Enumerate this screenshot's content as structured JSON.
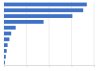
{
  "chart_data": {
    "type": "bar",
    "orientation": "horizontal",
    "categories": [
      null,
      null,
      null,
      null,
      null,
      null,
      null,
      null,
      null,
      null,
      null
    ],
    "values": [
      92,
      88,
      76,
      44,
      13,
      8,
      6,
      4,
      3,
      2,
      1
    ],
    "color": "#3f72c6",
    "xlim": [
      0,
      100
    ],
    "xticks": [
      0,
      25,
      50,
      75,
      100
    ],
    "grid": true,
    "tick_labels": false
  }
}
